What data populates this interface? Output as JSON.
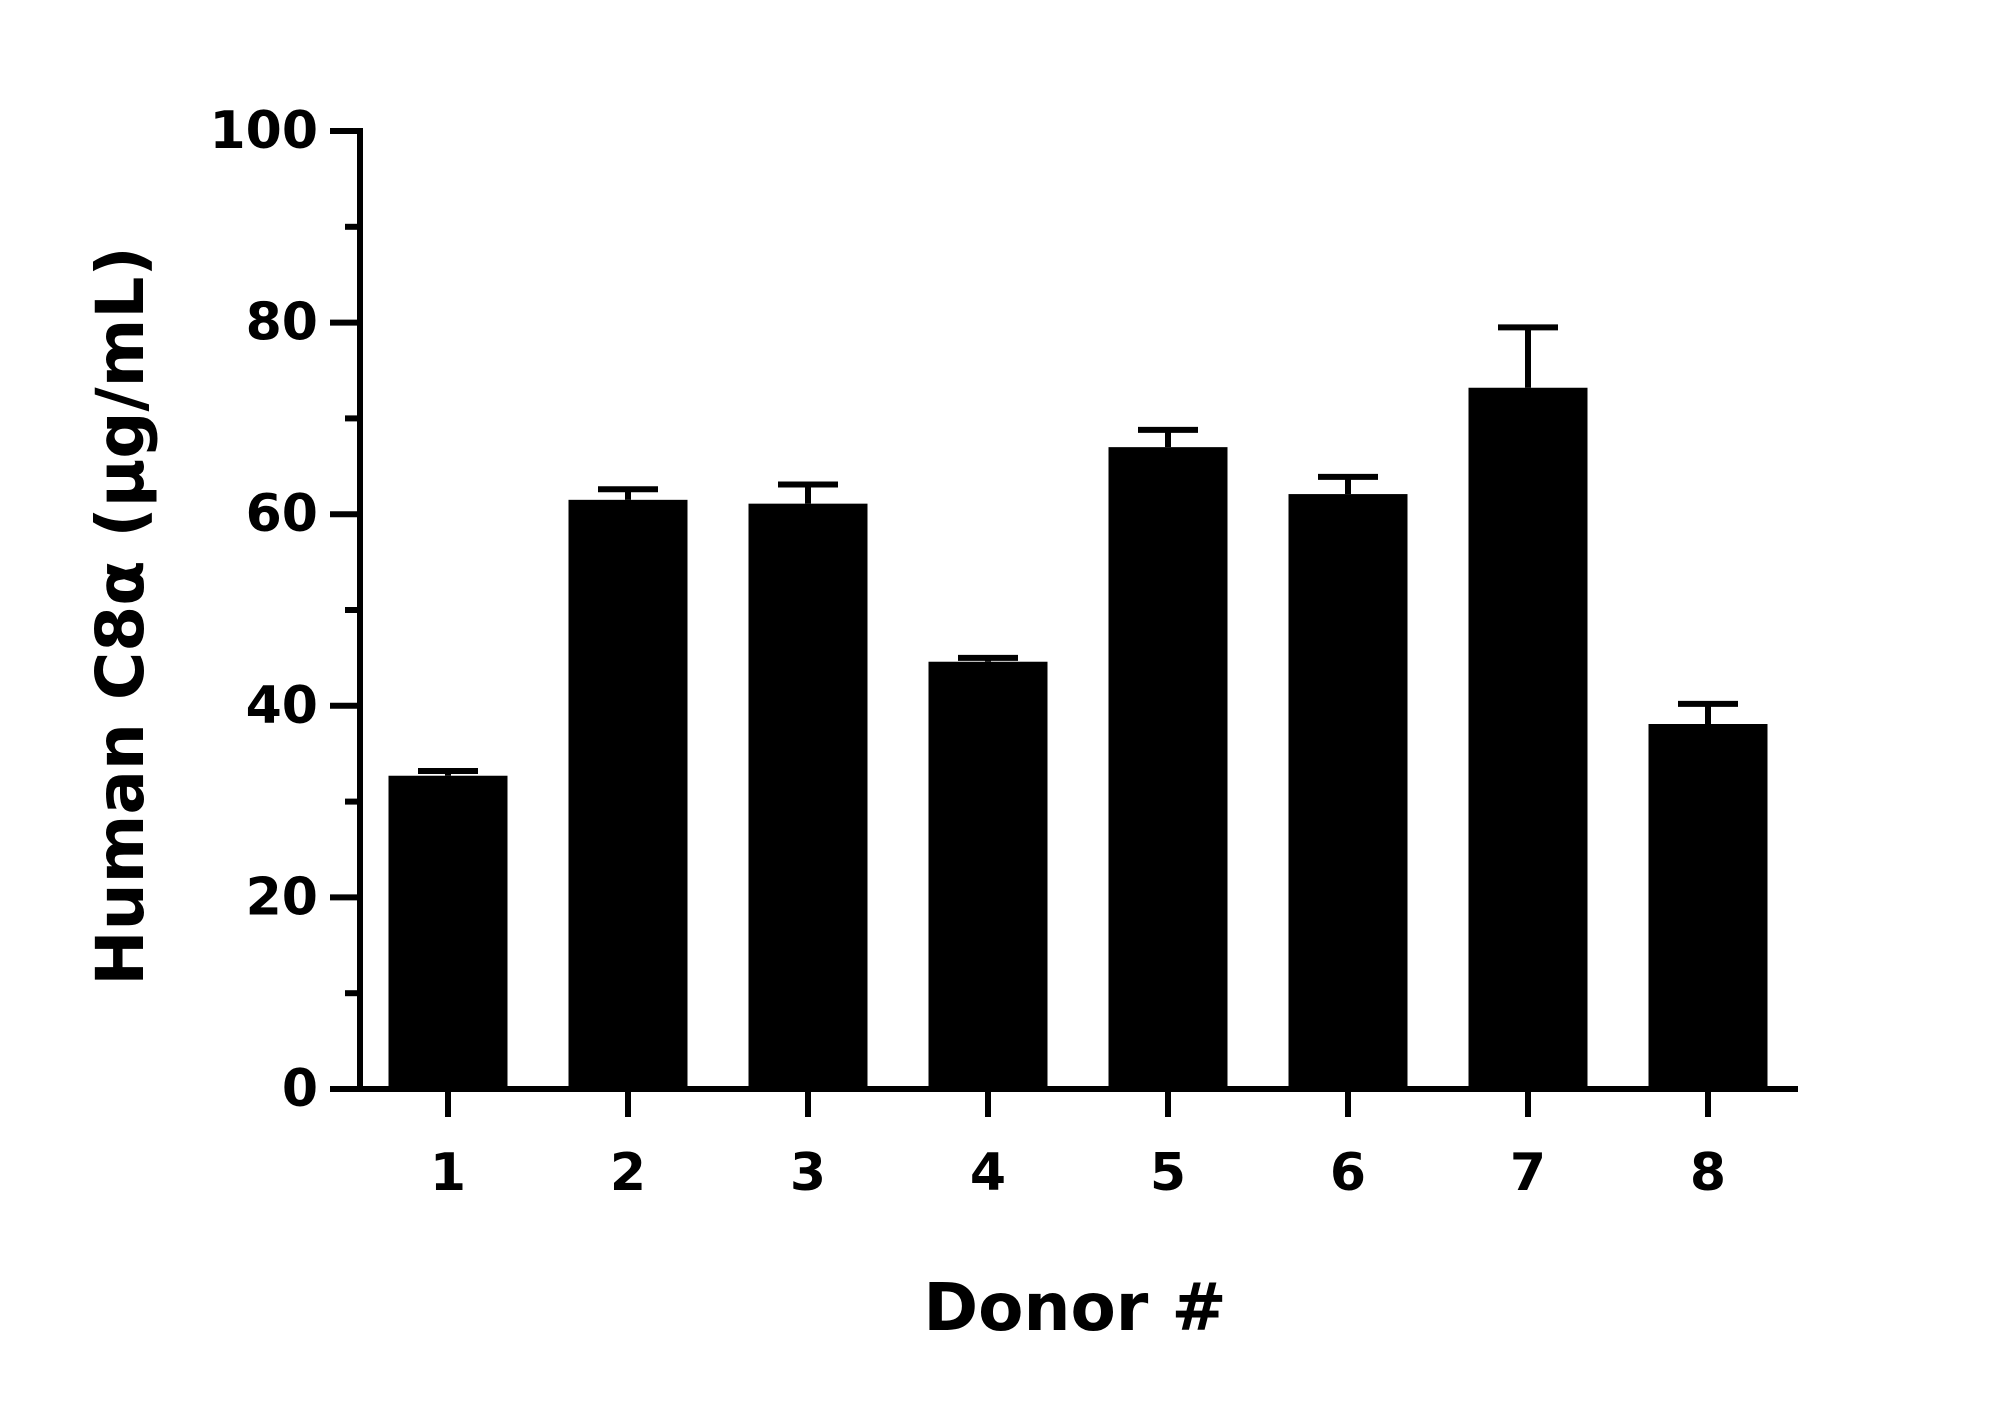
{
  "chart_data": {
    "type": "bar",
    "x_label": "Donor #",
    "y_label": "Human C8α (μg/mL)",
    "categories": [
      "1",
      "2",
      "3",
      "4",
      "5",
      "6",
      "7",
      "8"
    ],
    "values": [
      32.7,
      61.5,
      61.1,
      44.6,
      67.0,
      62.1,
      73.2,
      38.1
    ],
    "errors": [
      0.5,
      1.1,
      2.0,
      0.4,
      1.8,
      1.8,
      6.3,
      2.1
    ],
    "color": "#000000",
    "ylim": [
      0,
      100
    ],
    "yticks": [
      0,
      20,
      40,
      60,
      80,
      100
    ],
    "yminorticks": [
      10,
      30,
      50,
      70,
      90
    ],
    "grid": false
  }
}
